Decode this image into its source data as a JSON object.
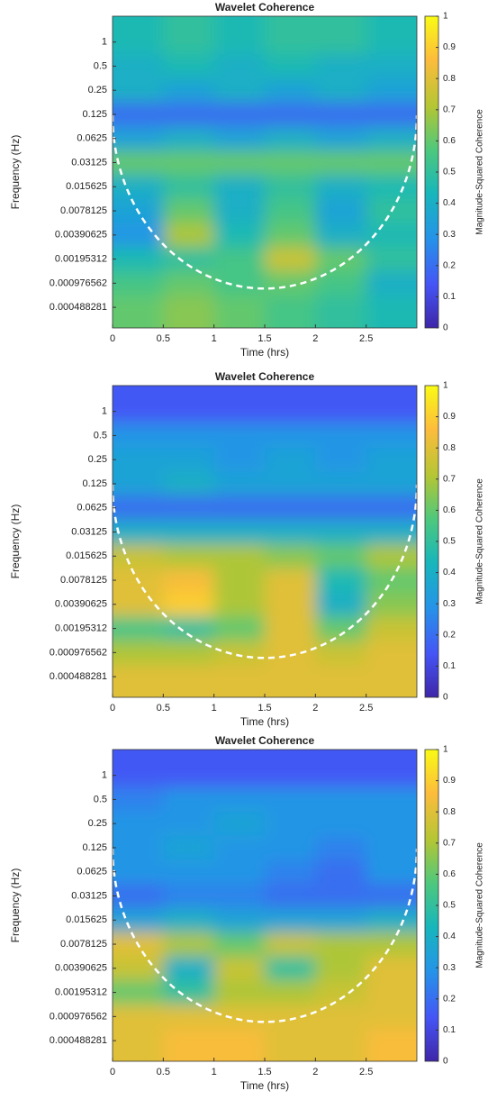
{
  "chart_data": [
    {
      "type": "heatmap",
      "title": "Wavelet Coherence",
      "xlabel": "Time (hrs)",
      "ylabel": "Frequency (Hz)",
      "xlim": [
        0,
        3
      ],
      "xticks": [
        0,
        0.5,
        1,
        1.5,
        2,
        2.5
      ],
      "yscale": "log",
      "ylim": [
        0.00027,
        2.1
      ],
      "yticks": [
        1,
        0.5,
        0.25,
        0.125,
        0.0625,
        0.03125,
        0.015625,
        0.0078125,
        0.00390625,
        {
          "value": 0.001953125,
          "label": "0.00195312"
        },
        {
          "value": 0.0009765625,
          "label": "0.000976562"
        },
        {
          "value": 0.00048828125,
          "label": "0.000488281"
        }
      ],
      "x": [
        0.25,
        0.75,
        1.25,
        1.75,
        2.25,
        2.75
      ],
      "z": [
        [
          0.45,
          0.5,
          0.45,
          0.5,
          0.5,
          0.45
        ],
        [
          0.4,
          0.45,
          0.4,
          0.45,
          0.4,
          0.4
        ],
        [
          0.4,
          0.35,
          0.4,
          0.35,
          0.4,
          0.35
        ],
        [
          0.2,
          0.2,
          0.2,
          0.2,
          0.2,
          0.2
        ],
        [
          0.35,
          0.4,
          0.35,
          0.4,
          0.35,
          0.4
        ],
        [
          0.6,
          0.6,
          0.6,
          0.6,
          0.6,
          0.6
        ],
        [
          0.4,
          0.5,
          0.4,
          0.5,
          0.4,
          0.45
        ],
        [
          0.35,
          0.6,
          0.4,
          0.55,
          0.35,
          0.5
        ],
        [
          0.3,
          0.7,
          0.45,
          0.6,
          0.4,
          0.45
        ],
        [
          0.45,
          0.5,
          0.55,
          0.75,
          0.6,
          0.5
        ],
        [
          0.55,
          0.6,
          0.55,
          0.6,
          0.55,
          0.4
        ],
        [
          0.6,
          0.65,
          0.6,
          0.55,
          0.5,
          0.45
        ]
      ],
      "colormap": "parula",
      "clim": [
        0,
        1
      ],
      "cticks": [
        0,
        0.1,
        0.2,
        0.3,
        0.4,
        0.5,
        0.6,
        0.7,
        0.8,
        0.9,
        1
      ],
      "colorbar_label": "Magnitude-Squared Coherence"
    },
    {
      "type": "heatmap",
      "title": "Wavelet Coherence",
      "xlabel": "Time (hrs)",
      "ylabel": "Frequency (Hz)",
      "xlim": [
        0,
        3
      ],
      "xticks": [
        0,
        0.5,
        1,
        1.5,
        2,
        2.5
      ],
      "yscale": "log",
      "ylim": [
        0.00027,
        2.1
      ],
      "yticks": [
        1,
        0.5,
        0.25,
        0.125,
        0.0625,
        0.03125,
        0.015625,
        0.0078125,
        0.00390625,
        {
          "value": 0.001953125,
          "label": "0.00195312"
        },
        {
          "value": 0.0009765625,
          "label": "0.000976562"
        },
        {
          "value": 0.00048828125,
          "label": "0.000488281"
        }
      ],
      "x": [
        0.25,
        0.75,
        1.25,
        1.75,
        2.25,
        2.75
      ],
      "z": [
        [
          0.15,
          0.15,
          0.15,
          0.15,
          0.15,
          0.15
        ],
        [
          0.3,
          0.3,
          0.3,
          0.3,
          0.3,
          0.3
        ],
        [
          0.35,
          0.35,
          0.3,
          0.35,
          0.3,
          0.35
        ],
        [
          0.35,
          0.4,
          0.35,
          0.35,
          0.35,
          0.35
        ],
        [
          0.2,
          0.2,
          0.2,
          0.2,
          0.2,
          0.2
        ],
        [
          0.4,
          0.4,
          0.4,
          0.4,
          0.4,
          0.4
        ],
        [
          0.75,
          0.7,
          0.7,
          0.65,
          0.6,
          0.7
        ],
        [
          0.8,
          0.85,
          0.7,
          0.8,
          0.45,
          0.6
        ],
        [
          0.8,
          0.9,
          0.7,
          0.8,
          0.4,
          0.65
        ],
        [
          0.55,
          0.5,
          0.6,
          0.8,
          0.6,
          0.75
        ],
        [
          0.7,
          0.7,
          0.75,
          0.8,
          0.75,
          0.8
        ],
        [
          0.8,
          0.8,
          0.8,
          0.8,
          0.8,
          0.8
        ]
      ],
      "colormap": "parula",
      "clim": [
        0,
        1
      ],
      "cticks": [
        0,
        0.1,
        0.2,
        0.3,
        0.4,
        0.5,
        0.6,
        0.7,
        0.8,
        0.9,
        1
      ],
      "colorbar_label": "Magnitude-Squared Coherence"
    },
    {
      "type": "heatmap",
      "title": "Wavelet Coherence",
      "xlabel": "Time (hrs)",
      "ylabel": "Frequency (Hz)",
      "xlim": [
        0,
        3
      ],
      "xticks": [
        0,
        0.5,
        1,
        1.5,
        2,
        2.5
      ],
      "yscale": "log",
      "ylim": [
        0.00027,
        2.1
      ],
      "yticks": [
        1,
        0.5,
        0.25,
        0.125,
        0.0625,
        0.03125,
        0.015625,
        0.0078125,
        0.00390625,
        {
          "value": 0.001953125,
          "label": "0.00195312"
        },
        {
          "value": 0.0009765625,
          "label": "0.000976562"
        },
        {
          "value": 0.00048828125,
          "label": "0.000488281"
        }
      ],
      "x": [
        0.25,
        0.75,
        1.25,
        1.75,
        2.25,
        2.75
      ],
      "z": [
        [
          0.15,
          0.15,
          0.15,
          0.15,
          0.15,
          0.15
        ],
        [
          0.25,
          0.3,
          0.3,
          0.3,
          0.3,
          0.3
        ],
        [
          0.3,
          0.3,
          0.35,
          0.3,
          0.3,
          0.3
        ],
        [
          0.3,
          0.35,
          0.3,
          0.3,
          0.25,
          0.3
        ],
        [
          0.3,
          0.3,
          0.3,
          0.25,
          0.2,
          0.3
        ],
        [
          0.2,
          0.25,
          0.25,
          0.2,
          0.2,
          0.2
        ],
        [
          0.35,
          0.4,
          0.35,
          0.35,
          0.35,
          0.4
        ],
        [
          0.8,
          0.7,
          0.6,
          0.75,
          0.7,
          0.7
        ],
        [
          0.75,
          0.4,
          0.75,
          0.5,
          0.7,
          0.8
        ],
        [
          0.6,
          0.5,
          0.7,
          0.7,
          0.75,
          0.8
        ],
        [
          0.8,
          0.8,
          0.8,
          0.8,
          0.8,
          0.8
        ],
        [
          0.8,
          0.85,
          0.85,
          0.8,
          0.8,
          0.85
        ]
      ],
      "colormap": "parula",
      "clim": [
        0,
        1
      ],
      "cticks": [
        0,
        0.1,
        0.2,
        0.3,
        0.4,
        0.5,
        0.6,
        0.7,
        0.8,
        0.9,
        1
      ],
      "colorbar_label": "Magnitude-Squared Coherence"
    }
  ]
}
